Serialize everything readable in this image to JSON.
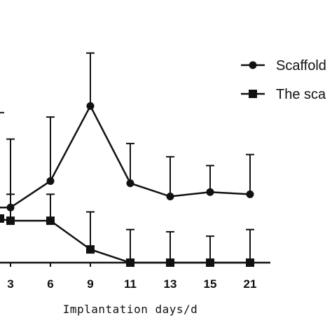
{
  "chart_data": {
    "type": "line",
    "xlabel": "Implantation days/d",
    "x": [
      3,
      6,
      9,
      11,
      13,
      15,
      21
    ],
    "ylim": [
      0,
      1
    ],
    "grid": false,
    "legend": "top-right",
    "series": [
      {
        "name": "Scaffold",
        "marker": "circle",
        "values": [
          0.25,
          0.37,
          0.71,
          0.36,
          0.3,
          0.32,
          0.31
        ],
        "error": [
          0.31,
          0.29,
          0.24,
          0.18,
          0.18,
          0.12,
          0.18
        ]
      },
      {
        "name": "The sca",
        "marker": "square",
        "values": [
          0.19,
          0.19,
          0.06,
          0.0,
          0.0,
          0.0,
          0.0
        ],
        "error": [
          0.12,
          0.12,
          0.17,
          0.15,
          0.14,
          0.12,
          0.15
        ]
      }
    ],
    "partial_left_series": {
      "scaffold_value": 0.25,
      "scaffold_error": 0.43,
      "sca_value": 0.2
    }
  }
}
